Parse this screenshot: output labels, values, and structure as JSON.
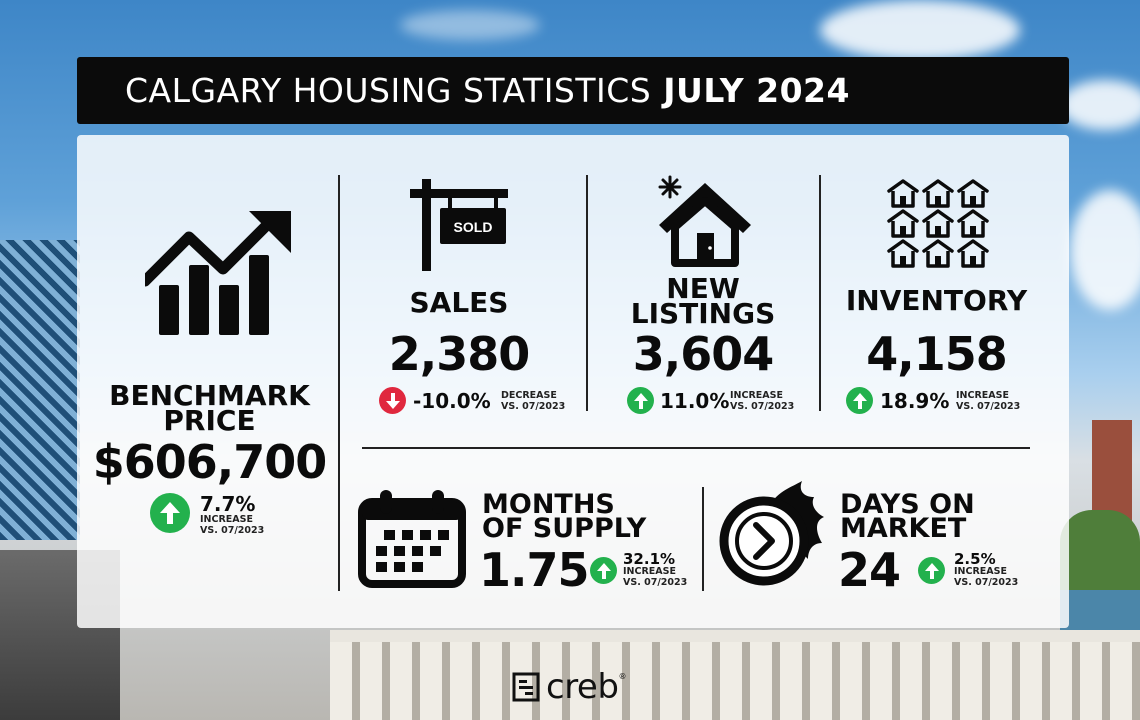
{
  "title": {
    "regular": "CALGARY HOUSING STATISTICS",
    "bold": "JULY 2024"
  },
  "benchmark": {
    "heading_line1": "BENCHMARK",
    "heading_line2": "PRICE",
    "value": "$606,700",
    "change": "7.7%",
    "direction_line1": "INCREASE",
    "direction_line2": "VS. 07/2023",
    "icon": "rising-bar-chart-icon",
    "arrow_icon": "up-arrow-icon"
  },
  "sales": {
    "heading": "SALES",
    "value": "2,380",
    "change": "-10.0%",
    "direction_line1": "DECREASE",
    "direction_line2": "VS. 07/2023",
    "icon": "sold-sign-icon",
    "sign_text": "SOLD",
    "arrow_icon": "down-arrow-icon"
  },
  "new_listings": {
    "heading_line1": "NEW",
    "heading_line2": "LISTINGS",
    "value": "3,604",
    "change": "11.0%",
    "direction_line1": "INCREASE",
    "direction_line2": "VS. 07/2023",
    "icon": "new-house-icon",
    "arrow_icon": "up-arrow-icon"
  },
  "inventory": {
    "heading": "INVENTORY",
    "value": "4,158",
    "change": "18.9%",
    "direction_line1": "INCREASE",
    "direction_line2": "VS. 07/2023",
    "icon": "houses-grid-icon",
    "arrow_icon": "up-arrow-icon"
  },
  "months_of_supply": {
    "heading_line1": "MONTHS",
    "heading_line2": "OF SUPPLY",
    "value": "1.75",
    "change": "32.1%",
    "direction_line1": "INCREASE",
    "direction_line2": "VS. 07/2023",
    "icon": "calendar-icon",
    "arrow_icon": "up-arrow-icon"
  },
  "days_on_market": {
    "heading_line1": "DAYS ON",
    "heading_line2": "MARKET",
    "value": "24",
    "change": "2.5%",
    "direction_line1": "INCREASE",
    "direction_line2": "VS. 07/2023",
    "icon": "fast-clock-icon",
    "arrow_icon": "up-arrow-icon"
  },
  "logo": {
    "word": "creb",
    "reg": "®",
    "icon": "creb-logo-icon"
  },
  "colors": {
    "increase": "#23b14d",
    "decrease": "#e0283e",
    "title_bg": "#0b0b0b",
    "text": "#0b0b0b"
  }
}
